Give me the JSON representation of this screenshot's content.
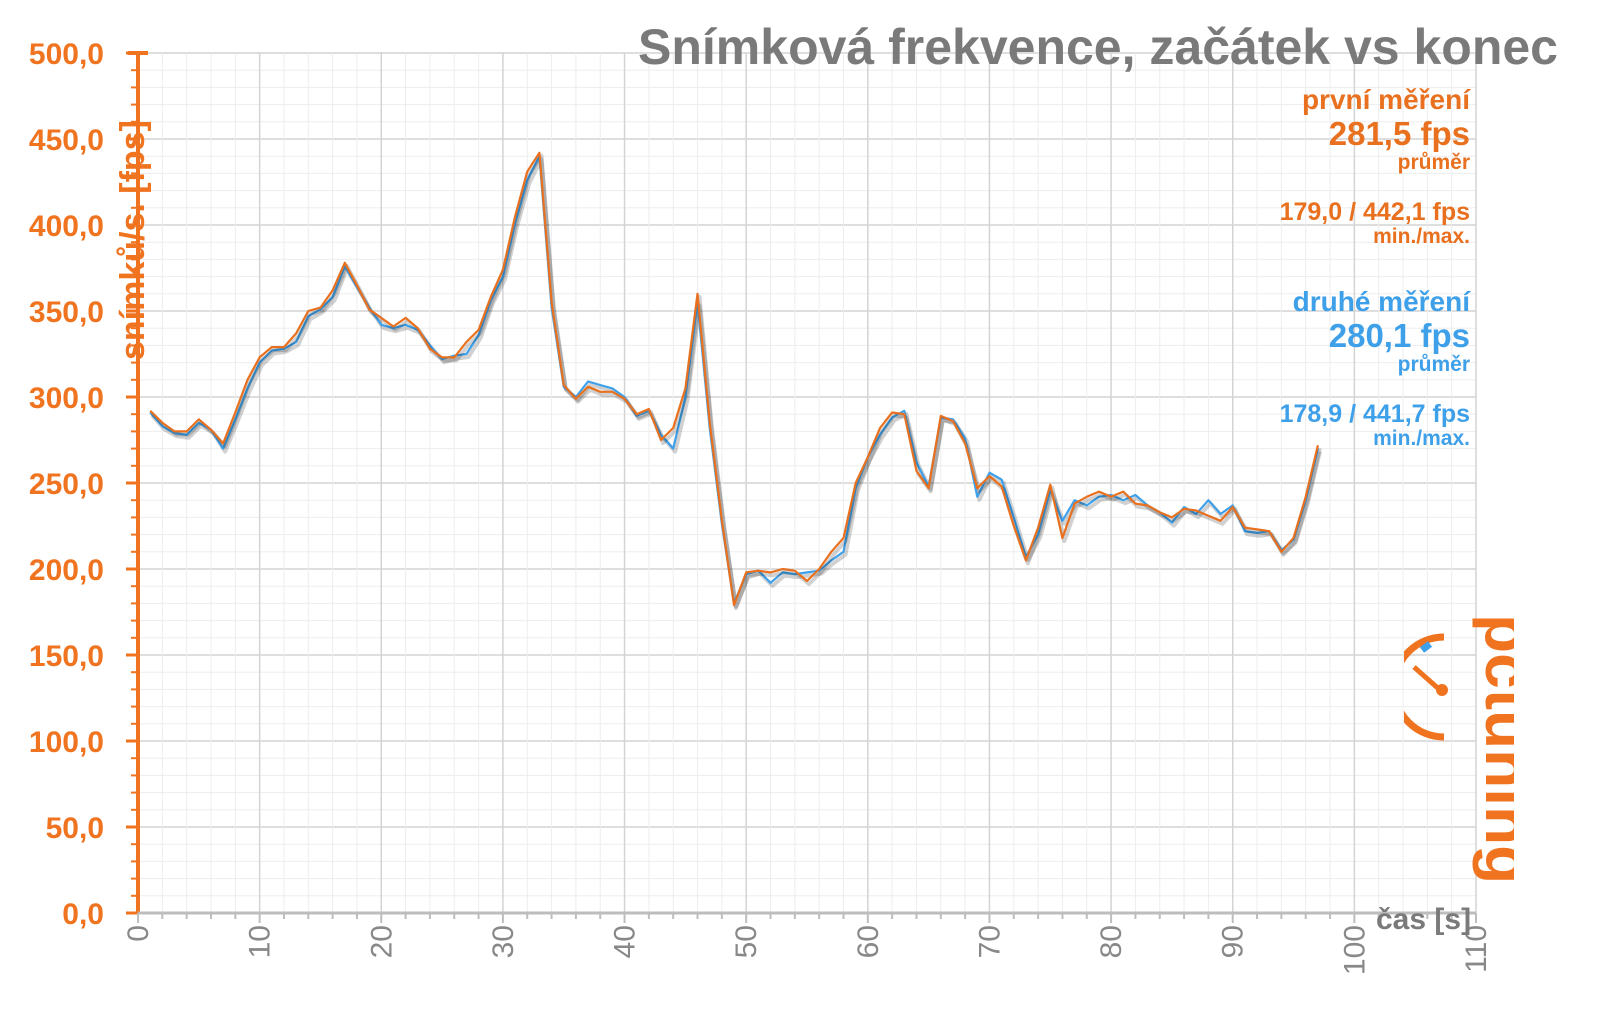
{
  "title": "Snímková frekvence, začátek vs konec",
  "colors": {
    "series1": "#e8701e",
    "series2": "#3fa0ea",
    "grid": "#dcdcdc",
    "axis": "#f07320",
    "xaxis": "#888888"
  },
  "stats": {
    "first": {
      "name": "první měření",
      "avg": "281,5 fps",
      "avg_label": "průměr",
      "minmax": "179,0 / 442,1 fps",
      "minmax_label": "min./max."
    },
    "second": {
      "name": "druhé měření",
      "avg": "280,1 fps",
      "avg_label": "průměr",
      "minmax": "178,9 / 441,7 fps",
      "minmax_label": "min./max."
    }
  },
  "logo": {
    "text": "pctuning"
  },
  "chart_data": {
    "type": "line",
    "title": "Snímková frekvence, začátek vs konec",
    "xlabel": "čas [s]",
    "ylabel": "snímků/s. [fps]",
    "xlim": [
      0,
      110
    ],
    "ylim": [
      0,
      500
    ],
    "xticks": [
      "0",
      "10",
      "20",
      "30",
      "40",
      "50",
      "60",
      "70",
      "80",
      "90",
      "100",
      "110"
    ],
    "yticks": [
      "0,0",
      "50,0",
      "100,0",
      "150,0",
      "200,0",
      "250,0",
      "300,0",
      "350,0",
      "400,0",
      "450,0",
      "500,0"
    ],
    "grid": true,
    "x": [
      1,
      2,
      3,
      4,
      5,
      6,
      7,
      8,
      9,
      10,
      11,
      12,
      13,
      14,
      15,
      16,
      17,
      18,
      19,
      20,
      21,
      22,
      23,
      24,
      25,
      26,
      27,
      28,
      29,
      30,
      31,
      32,
      33,
      34,
      35,
      36,
      37,
      38,
      39,
      40,
      41,
      42,
      43,
      44,
      45,
      46,
      47,
      48,
      49,
      50,
      51,
      52,
      53,
      54,
      55,
      56,
      57,
      58,
      59,
      60,
      61,
      62,
      63,
      64,
      65,
      66,
      67,
      68,
      69,
      70,
      71,
      72,
      73,
      74,
      75,
      76,
      77,
      78,
      79,
      80,
      81,
      82,
      83,
      84,
      85,
      86,
      87,
      88,
      89,
      90,
      91,
      92,
      93,
      94,
      95,
      96,
      97
    ],
    "series": [
      {
        "name": "první měření",
        "values": [
          292,
          285,
          280,
          280,
          287,
          281,
          273,
          291,
          310,
          323,
          329,
          329,
          337,
          350,
          352,
          362,
          378,
          365,
          351,
          346,
          341,
          346,
          340,
          328,
          323,
          323,
          332,
          339,
          358,
          374,
          405,
          431,
          442,
          355,
          307,
          299,
          306,
          303,
          303,
          299,
          290,
          293,
          275,
          282,
          305,
          360,
          285,
          228,
          179,
          198,
          199,
          198,
          200,
          199,
          193,
          200,
          210,
          218,
          250,
          265,
          282,
          291,
          290,
          257,
          247,
          289,
          286,
          273,
          247,
          254,
          248,
          225,
          205,
          224,
          249,
          218,
          238,
          242,
          245,
          242,
          245,
          238,
          237,
          233,
          230,
          235,
          234,
          231,
          228,
          236,
          224,
          223,
          222,
          210,
          218,
          242,
          272
        ]
      },
      {
        "name": "druhé měření",
        "values": [
          291,
          283,
          279,
          278,
          285,
          281,
          270,
          287,
          305,
          320,
          327,
          328,
          332,
          347,
          351,
          358,
          376,
          364,
          352,
          342,
          340,
          342,
          339,
          330,
          322,
          324,
          325,
          336,
          356,
          370,
          401,
          426,
          440,
          352,
          306,
          300,
          309,
          307,
          305,
          300,
          289,
          292,
          278,
          270,
          300,
          355,
          282,
          226,
          180,
          197,
          199,
          192,
          198,
          197,
          198,
          199,
          205,
          210,
          247,
          265,
          278,
          288,
          292,
          262,
          248,
          288,
          287,
          276,
          242,
          256,
          252,
          230,
          207,
          220,
          246,
          228,
          240,
          237,
          242,
          243,
          240,
          243,
          237,
          233,
          227,
          236,
          232,
          240,
          232,
          237,
          222,
          221,
          222,
          211,
          217,
          240,
          270
        ]
      }
    ]
  }
}
